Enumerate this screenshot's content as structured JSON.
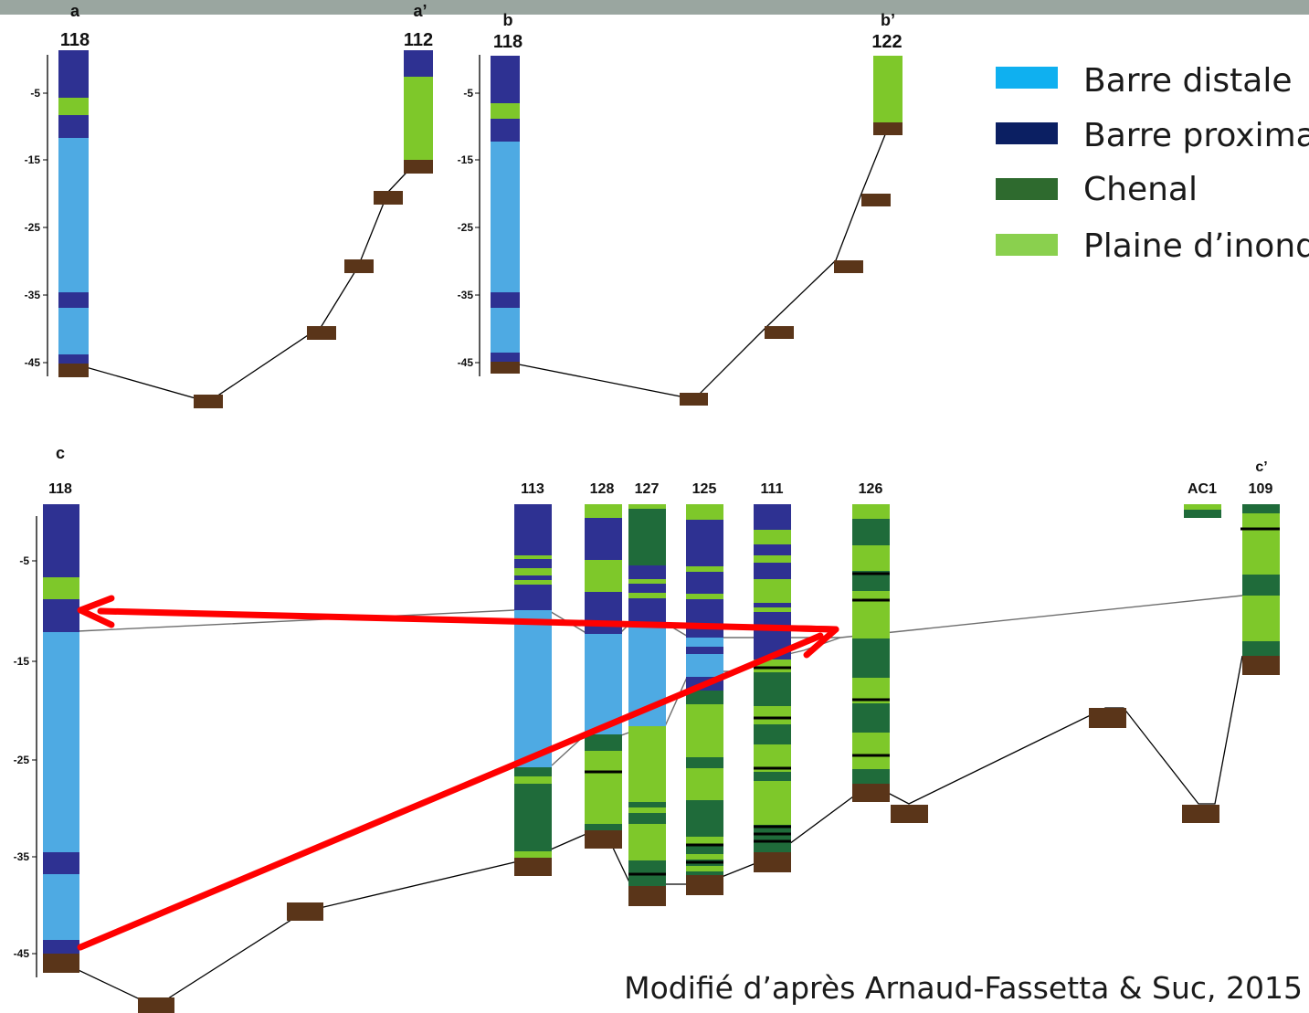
{
  "colors": {
    "barre_distale": "#4eaae3",
    "barre_distale_legend": "#0fb0f0",
    "barre_proximale": "#2e3192",
    "barre_proximale_legend": "#0b1f62",
    "chenal": "#1f6b3a",
    "chenal_legend": "#2e6a2e",
    "plaine": "#7ec82a",
    "plaine_legend": "#8ad04e",
    "substratum": "#5a3519",
    "arrow": "#ff0000"
  },
  "panels": {
    "a": {
      "start_label": "a",
      "start_id": "118",
      "end_label": "a’",
      "end_id": "112",
      "ticks": [
        "-5",
        "-15",
        "-25",
        "-35",
        "-45"
      ]
    },
    "b": {
      "start_label": "b",
      "start_id": "118",
      "end_label": "b’",
      "end_id": "122",
      "ticks": [
        "-5",
        "-15",
        "-25",
        "-35",
        "-45"
      ]
    },
    "c": {
      "start_label": "c",
      "end_label": "c’",
      "ticks": [
        "-5",
        "-15",
        "-25",
        "-35",
        "-45"
      ],
      "boreholes": [
        "118",
        "113",
        "128",
        "127",
        "125",
        "111",
        "126",
        "AC1",
        "109"
      ]
    }
  },
  "legend": [
    {
      "label": "Barre distale",
      "color_key": "barre_distale_legend"
    },
    {
      "label": "Barre proximale",
      "color_key": "barre_proximale_legend"
    },
    {
      "label": "Chenal",
      "color_key": "chenal_legend"
    },
    {
      "label": "Plaine d’inondation",
      "color_key": "plaine_legend"
    }
  ],
  "credit": "Modifié d’après Arnaud-Fassetta & Suc, 2015"
}
